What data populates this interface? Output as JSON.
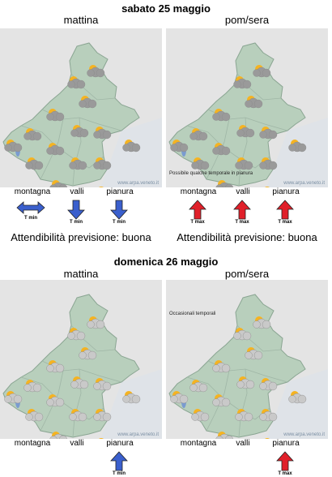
{
  "days": [
    {
      "title": "sabato 25 maggio",
      "periods": [
        {
          "label": "mattina",
          "watermark": "www.arpa.veneto.it",
          "note": "",
          "zones": [
            "montagna",
            "valli",
            "pianura"
          ],
          "arrows": [
            {
              "zone": "montagna",
              "type": "both",
              "color": "#3a5fcd",
              "label": "T min"
            },
            {
              "zone": "valli",
              "type": "down",
              "color": "#3a5fcd",
              "label": "T min"
            },
            {
              "zone": "pianura",
              "type": "down",
              "color": "#3a5fcd",
              "label": "T min"
            }
          ],
          "reliability": "Attendibilità previsione: buona"
        },
        {
          "label": "pom/sera",
          "watermark": "www.arpa.veneto.it",
          "note": "Possibile qualche temporale in pianura",
          "zones": [
            "montagna",
            "valli",
            "pianura"
          ],
          "arrows": [
            {
              "zone": "montagna",
              "type": "up",
              "color": "#e0202a",
              "label": "T max"
            },
            {
              "zone": "valli",
              "type": "up",
              "color": "#e0202a",
              "label": "T max"
            },
            {
              "zone": "pianura",
              "type": "up",
              "color": "#e0202a",
              "label": "T max"
            }
          ],
          "reliability": "Attendibilità previsione: buona"
        }
      ]
    },
    {
      "title": "domenica 26 maggio",
      "periods": [
        {
          "label": "mattina",
          "watermark": "www.arpa.veneto.it",
          "note": "",
          "zones": [
            "montagna",
            "valli",
            "pianura"
          ],
          "arrows": [
            {
              "zone": "pianura",
              "type": "up",
              "color": "#3a5fcd",
              "label": "T min"
            }
          ],
          "reliability": ""
        },
        {
          "label": "pom/sera",
          "watermark": "www.arpa.veneto.it",
          "note": "Occasionali temporali",
          "zones": [
            "montagna",
            "valli",
            "pianura"
          ],
          "arrows": [
            {
              "zone": "pianura",
              "type": "up",
              "color": "#e0202a",
              "label": "T max"
            }
          ],
          "reliability": ""
        }
      ]
    }
  ]
}
